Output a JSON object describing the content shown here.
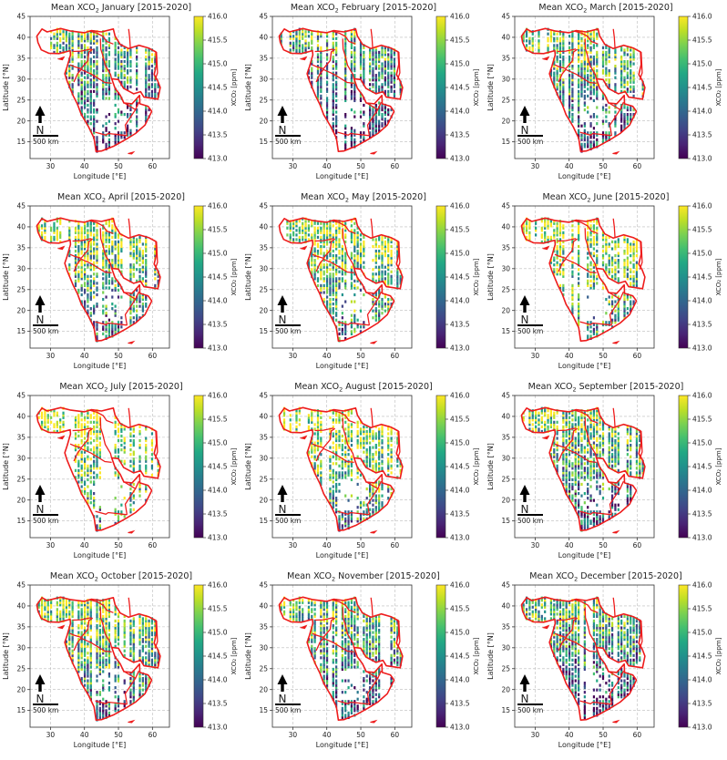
{
  "chart_data": {
    "type": "heatmap",
    "title_prefix": "Mean XCO",
    "title_subscript": "2",
    "title_period": "[2015-2020]",
    "months": [
      "January",
      "February",
      "March",
      "April",
      "May",
      "June",
      "July",
      "August",
      "September",
      "October",
      "November",
      "December"
    ],
    "xlabel": "Longitude [°E]",
    "ylabel": "Latitude [°N]",
    "xlim": [
      24,
      65
    ],
    "ylim": [
      11,
      45
    ],
    "xticks": [
      30,
      40,
      50,
      60
    ],
    "yticks": [
      15,
      20,
      25,
      30,
      35,
      40,
      45
    ],
    "grid": true,
    "colorbar": {
      "label": "XCO₂ [ppm]",
      "range": [
        413.0,
        416.0
      ],
      "ticks": [
        "416.0",
        "415.5",
        "415.0",
        "414.5",
        "414.0",
        "413.5",
        "413.0"
      ],
      "colormap": "viridis"
    },
    "north_arrow": "N",
    "scale_bar": "500 km",
    "colors": {
      "border": "#ee1c1c",
      "low": "#440154",
      "high": "#fde725",
      "gridline": "#bbbbbb"
    }
  }
}
